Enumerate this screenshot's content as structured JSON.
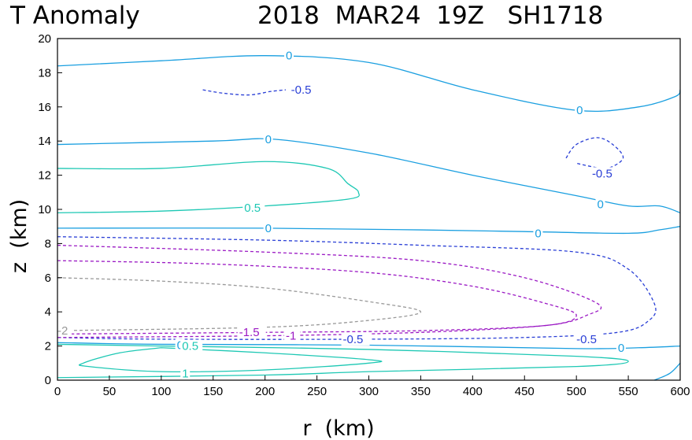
{
  "chart_data": {
    "type": "contour",
    "title_left": "T Anomaly",
    "title_right": "2018  MAR24  19Z   SH1718",
    "xlabel": "r  (km)",
    "ylabel": "z  (km)",
    "xlim": [
      0,
      600
    ],
    "ylim": [
      0,
      20
    ],
    "x_ticks": [
      "0",
      "50",
      "100",
      "150",
      "200",
      "250",
      "300",
      "350",
      "400",
      "450",
      "500",
      "550",
      "600"
    ],
    "y_ticks": [
      "0",
      "2",
      "4",
      "6",
      "8",
      "10",
      "12",
      "14",
      "16",
      "18",
      "20"
    ],
    "grid": false,
    "contours": [
      {
        "level": "0",
        "color": "#1a9fe0",
        "dashed": false,
        "points": [
          [
            0,
            18.4
          ],
          [
            100,
            18.7
          ],
          [
            200,
            19.0
          ],
          [
            300,
            18.6
          ],
          [
            400,
            17.0
          ],
          [
            500,
            15.8
          ],
          [
            560,
            16.0
          ],
          [
            595,
            16.6
          ],
          [
            600,
            17.0
          ]
        ],
        "labels": [
          {
            "text": "0",
            "x": 220,
            "y": 19.0
          },
          {
            "text": "0",
            "x": 500,
            "y": 15.8
          }
        ]
      },
      {
        "level": "0",
        "color": "#1a9fe0",
        "dashed": false,
        "points": [
          [
            0,
            13.8
          ],
          [
            150,
            14.0
          ],
          [
            210,
            14.1
          ],
          [
            300,
            13.3
          ],
          [
            400,
            12.0
          ],
          [
            500,
            10.8
          ],
          [
            550,
            10.2
          ],
          [
            580,
            10.2
          ],
          [
            600,
            9.8
          ]
        ],
        "labels": [
          {
            "text": "0",
            "x": 200,
            "y": 14.1
          },
          {
            "text": "0",
            "x": 520,
            "y": 10.3
          }
        ]
      },
      {
        "level": "0",
        "color": "#1a9fe0",
        "dashed": false,
        "points": [
          [
            0,
            8.9
          ],
          [
            200,
            8.9
          ],
          [
            350,
            8.8
          ],
          [
            450,
            8.7
          ],
          [
            550,
            8.6
          ],
          [
            580,
            8.8
          ],
          [
            600,
            9.0
          ]
        ],
        "labels": [
          {
            "text": "0",
            "x": 200,
            "y": 8.9
          },
          {
            "text": "0",
            "x": 460,
            "y": 8.6
          }
        ]
      },
      {
        "level": "0",
        "color": "#1a9fe0",
        "dashed": false,
        "points": [
          [
            0,
            2.2
          ],
          [
            100,
            2.1
          ],
          [
            300,
            2.05
          ],
          [
            500,
            1.85
          ],
          [
            560,
            1.9
          ],
          [
            600,
            2.0
          ]
        ],
        "labels": [
          {
            "text": "0",
            "x": 115,
            "y": 2.05
          },
          {
            "text": "0",
            "x": 540,
            "y": 1.9
          }
        ]
      },
      {
        "level": "0",
        "color": "#1a9fe0",
        "dashed": false,
        "points": [
          [
            575,
            0
          ],
          [
            590,
            0.4
          ],
          [
            600,
            1.0
          ]
        ],
        "labels": []
      },
      {
        "level": "0.5",
        "color": "#1ec8b4",
        "dashed": false,
        "points": [
          [
            0,
            12.4
          ],
          [
            100,
            12.4
          ],
          [
            200,
            12.8
          ],
          [
            260,
            12.4
          ],
          [
            280,
            11.5
          ],
          [
            290,
            11.0
          ],
          [
            280,
            10.6
          ],
          [
            200,
            10.2
          ],
          [
            100,
            9.9
          ],
          [
            0,
            9.8
          ]
        ],
        "labels": [
          {
            "text": "0.5",
            "x": 180,
            "y": 10.1
          }
        ]
      },
      {
        "level": "0.5",
        "color": "#1ec8b4",
        "dashed": false,
        "points": [
          [
            0,
            2.1
          ],
          [
            100,
            2.0
          ],
          [
            300,
            1.8
          ],
          [
            500,
            1.4
          ],
          [
            550,
            1.1
          ],
          [
            500,
            0.8
          ],
          [
            300,
            0.5
          ],
          [
            200,
            0.3
          ],
          [
            0,
            0.15
          ]
        ],
        "labels": [
          {
            "text": "0.5",
            "x": 120,
            "y": 2.0
          }
        ]
      },
      {
        "level": "1",
        "color": "#1ec8b4",
        "dashed": false,
        "points": [
          [
            100,
            1.9
          ],
          [
            200,
            1.6
          ],
          [
            300,
            1.2
          ],
          [
            300,
            1.0
          ],
          [
            200,
            0.6
          ],
          [
            100,
            0.5
          ],
          [
            30,
            0.8
          ],
          [
            25,
            1.0
          ],
          [
            60,
            1.6
          ],
          [
            100,
            1.9
          ]
        ],
        "labels": [
          {
            "text": "1",
            "x": 120,
            "y": 0.4
          }
        ]
      },
      {
        "level": "-0.5",
        "color": "#2a3fd6",
        "dashed": true,
        "points": [
          [
            140,
            17.0
          ],
          [
            160,
            16.8
          ],
          [
            185,
            16.7
          ],
          [
            205,
            16.9
          ],
          [
            220,
            17.0
          ]
        ],
        "labels": [
          {
            "text": "-0.5",
            "x": 225,
            "y": 17.0
          }
        ]
      },
      {
        "level": "-0.5",
        "color": "#2a3fd6",
        "dashed": true,
        "points": [
          [
            490,
            13.0
          ],
          [
            500,
            13.8
          ],
          [
            520,
            14.2
          ],
          [
            535,
            13.8
          ],
          [
            545,
            13.0
          ],
          [
            530,
            12.4
          ],
          [
            515,
            12.5
          ],
          [
            500,
            12.7
          ]
        ],
        "labels": [
          {
            "text": "-0.5",
            "x": 515,
            "y": 12.1
          }
        ]
      },
      {
        "level": "-0.5",
        "color": "#2a3fd6",
        "dashed": true,
        "points": [
          [
            0,
            8.4
          ],
          [
            200,
            8.2
          ],
          [
            350,
            7.9
          ],
          [
            500,
            7.5
          ],
          [
            550,
            6.5
          ],
          [
            575,
            4.5
          ],
          [
            570,
            3.5
          ],
          [
            540,
            2.8
          ],
          [
            450,
            2.5
          ],
          [
            300,
            2.4
          ],
          [
            100,
            2.4
          ],
          [
            0,
            2.5
          ]
        ],
        "labels": [
          {
            "text": "-0.5",
            "x": 275,
            "y": 2.4
          },
          {
            "text": "-0.5",
            "x": 500,
            "y": 2.4
          }
        ]
      },
      {
        "level": "-1",
        "color": "#9b19c4",
        "dashed": true,
        "points": [
          [
            0,
            7.9
          ],
          [
            200,
            7.5
          ],
          [
            350,
            7.0
          ],
          [
            450,
            6.0
          ],
          [
            520,
            4.5
          ],
          [
            510,
            3.8
          ],
          [
            470,
            3.2
          ],
          [
            350,
            2.8
          ],
          [
            200,
            2.6
          ],
          [
            0,
            2.5
          ]
        ],
        "labels": [
          {
            "text": "-1",
            "x": 220,
            "y": 2.6
          }
        ]
      },
      {
        "level": "-1.5",
        "color": "#9b19c4",
        "dashed": true,
        "points": [
          [
            0,
            7.0
          ],
          [
            150,
            6.8
          ],
          [
            300,
            6.3
          ],
          [
            400,
            5.5
          ],
          [
            470,
            4.5
          ],
          [
            500,
            3.8
          ],
          [
            470,
            3.2
          ],
          [
            350,
            2.9
          ],
          [
            200,
            2.8
          ],
          [
            0,
            2.7
          ]
        ],
        "labels": [
          {
            "text": "-1.5",
            "x": 175,
            "y": 2.8
          }
        ]
      },
      {
        "level": "-2",
        "color": "#999999",
        "dashed": true,
        "points": [
          [
            0,
            6.0
          ],
          [
            100,
            5.8
          ],
          [
            200,
            5.4
          ],
          [
            300,
            4.6
          ],
          [
            350,
            4.0
          ],
          [
            300,
            3.5
          ],
          [
            200,
            3.1
          ],
          [
            0,
            2.9
          ]
        ],
        "labels": [
          {
            "text": "-2",
            "x": 0,
            "y": 2.9
          }
        ]
      }
    ]
  }
}
